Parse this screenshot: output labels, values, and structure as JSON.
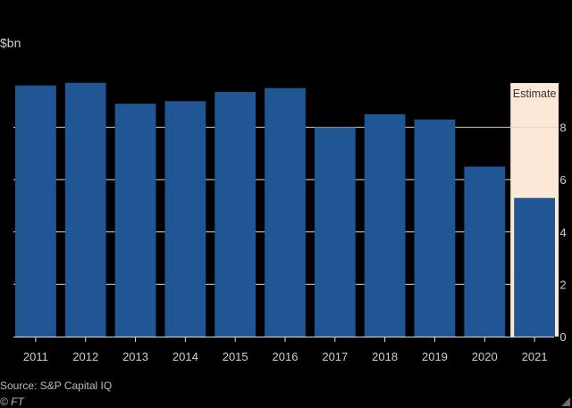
{
  "chart_data": {
    "type": "bar",
    "unit_label": "$bn",
    "categories": [
      "2011",
      "2012",
      "2013",
      "2014",
      "2015",
      "2016",
      "2017",
      "2018",
      "2019",
      "2020",
      "2021"
    ],
    "values": [
      9.6,
      9.7,
      8.9,
      9.0,
      9.35,
      9.5,
      8.0,
      8.5,
      8.3,
      6.5,
      5.3
    ],
    "ylim": [
      0,
      10
    ],
    "yticks": [
      0,
      2,
      4,
      6,
      8
    ],
    "y_axis_side": "right",
    "grid": true,
    "estimate_label": "Estimate",
    "estimate_category": "2021",
    "colors": {
      "bar": "#1f5693",
      "estimate_band": "#fde8d8",
      "grid": "#d9d9d9",
      "background": "#000000"
    }
  },
  "footer": {
    "source": "Source: S&P Capital IQ",
    "credit": "© FT"
  }
}
